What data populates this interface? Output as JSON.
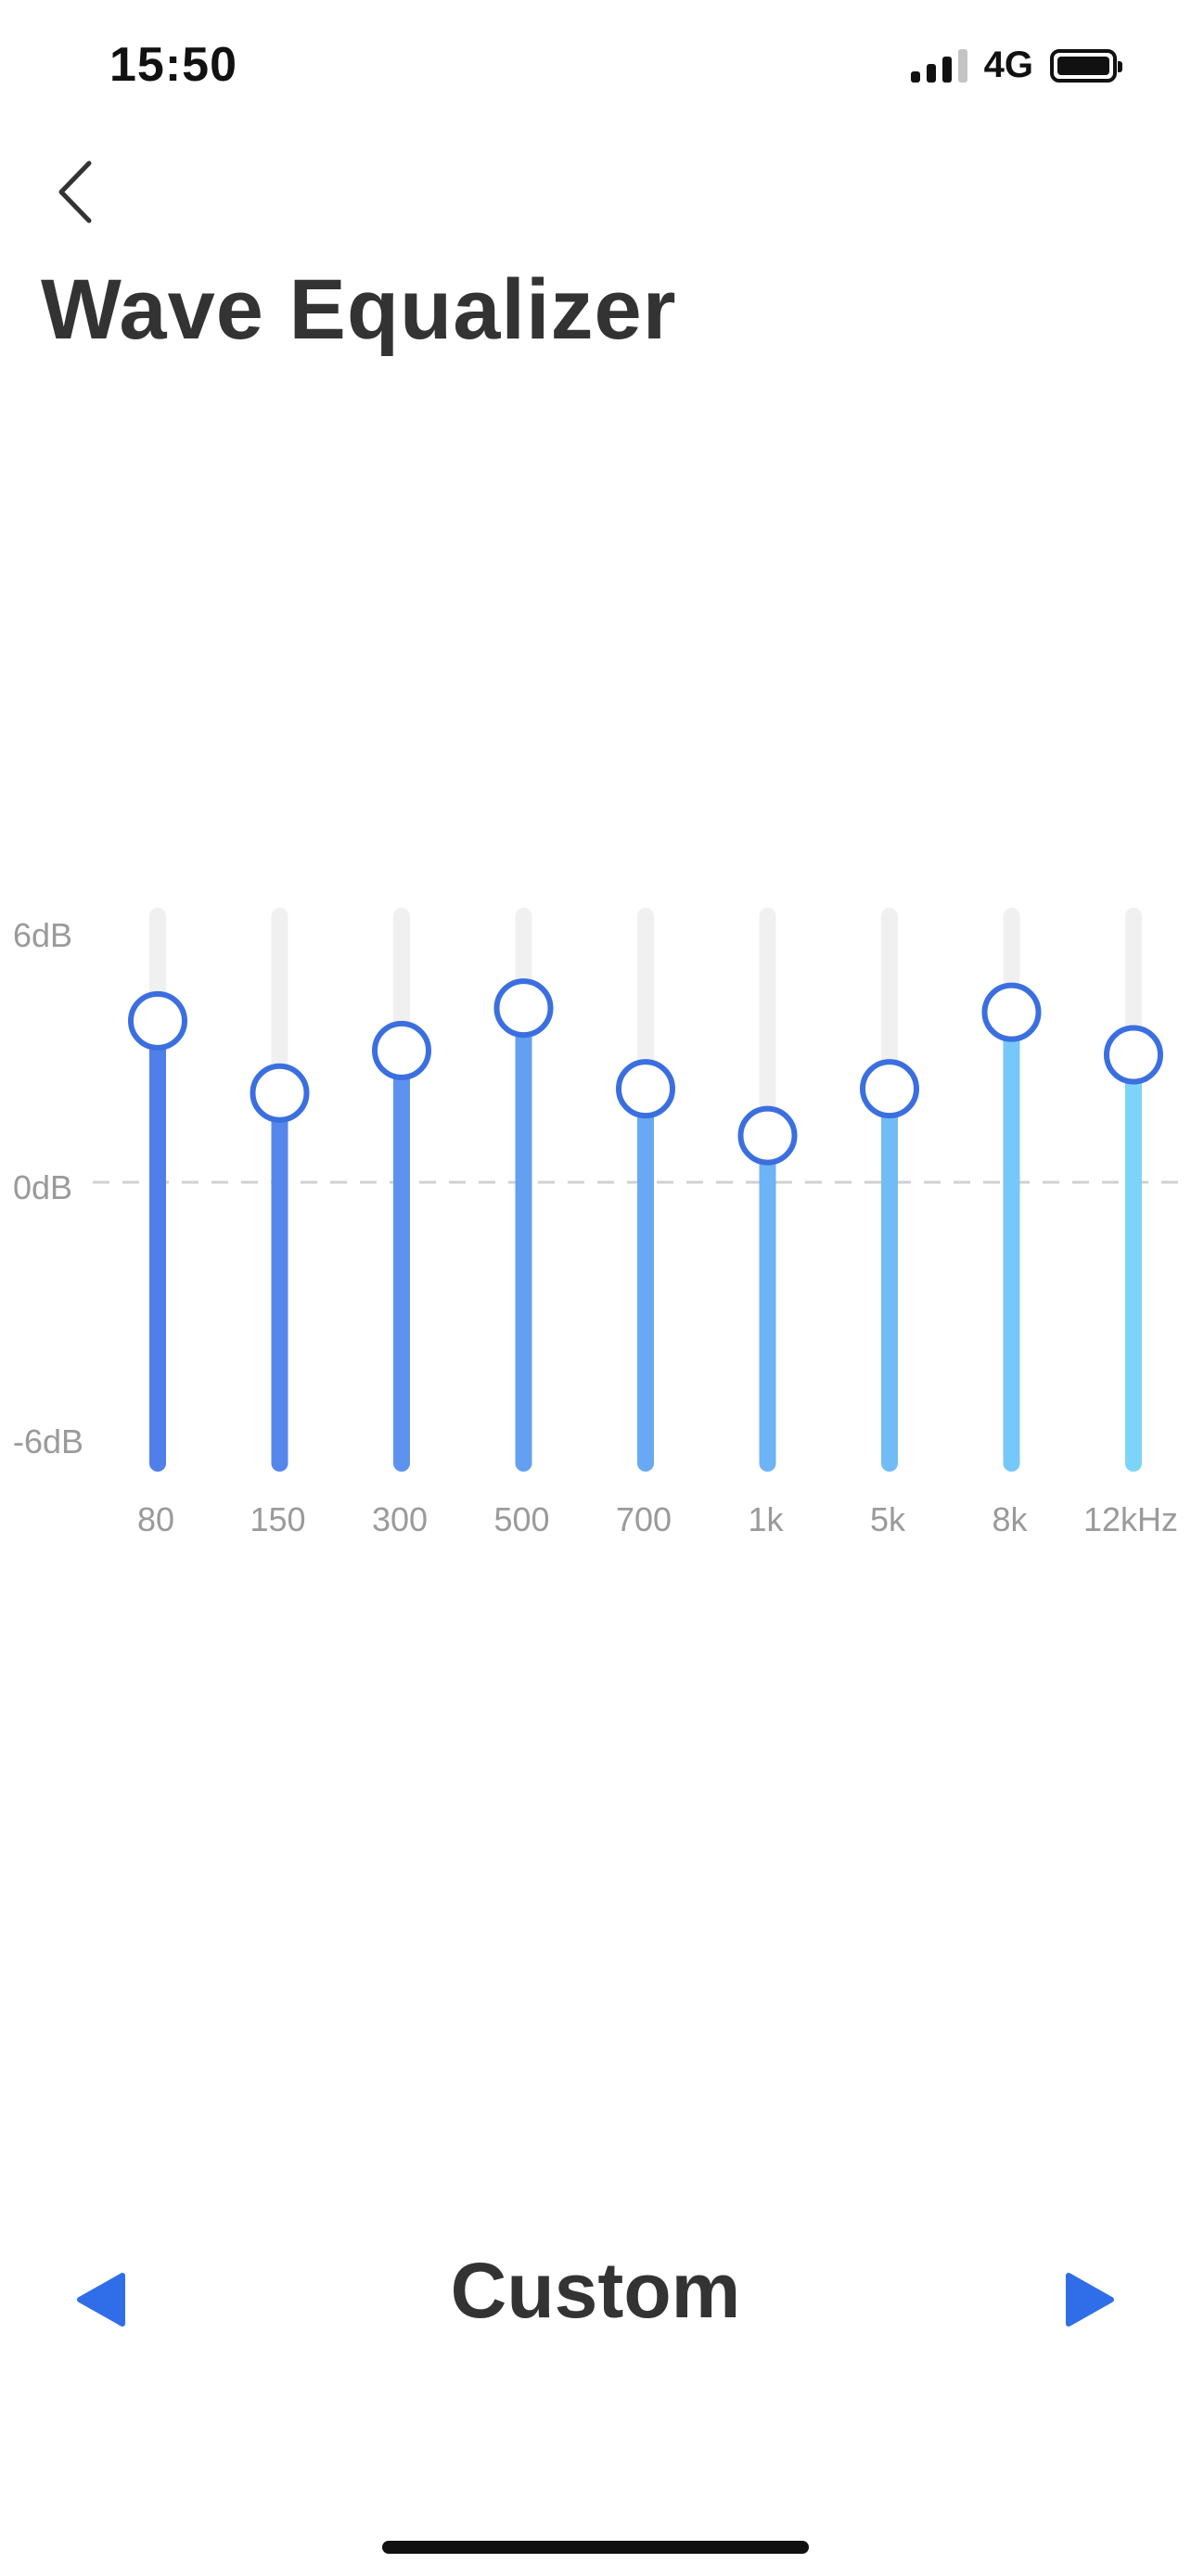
{
  "status_bar": {
    "time": "15:50",
    "network": "4G",
    "signal_bars_active": 3,
    "signal_bars_total": 4,
    "battery_level": 1.0
  },
  "header": {
    "back_icon": "chevron-left-icon",
    "title": "Wave Equalizer"
  },
  "equalizer": {
    "db_labels": {
      "top": "6dB",
      "mid": "0dB",
      "bottom": "-6dB"
    },
    "db_range": [
      -6,
      6
    ],
    "bands": [
      {
        "label": "80",
        "gain_db": 3.8,
        "color": "#4f7fe8"
      },
      {
        "label": "150",
        "gain_db": 2.1,
        "color": "#5586ec"
      },
      {
        "label": "300",
        "gain_db": 3.1,
        "color": "#5d93ef"
      },
      {
        "label": "500",
        "gain_db": 4.1,
        "color": "#64a0f1"
      },
      {
        "label": "700",
        "gain_db": 2.2,
        "color": "#69a9f3"
      },
      {
        "label": "1k",
        "gain_db": 1.1,
        "color": "#6db3f5"
      },
      {
        "label": "5k",
        "gain_db": 2.2,
        "color": "#72bcf6"
      },
      {
        "label": "8k",
        "gain_db": 4.0,
        "color": "#77c7f8"
      },
      {
        "label": "12kHz",
        "gain_db": 3.0,
        "color": "#7dd4fa"
      }
    ],
    "knob_stroke": "#3b6fe0",
    "track_color": "#f0f0f0"
  },
  "preset": {
    "name": "Custom",
    "prev_icon": "triangle-left-icon",
    "next_icon": "triangle-right-icon",
    "accent": "#2f6ee8"
  }
}
